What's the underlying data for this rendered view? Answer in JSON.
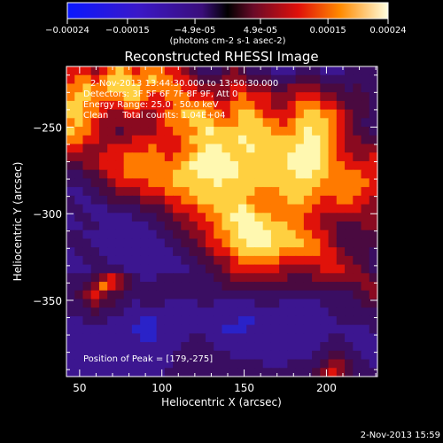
{
  "chart_data": {
    "type": "heatmap",
    "title": "Reconstructed RHESSI Image",
    "xlabel": "Heliocentric X (arcsec)",
    "ylabel": "Heliocentric Y (arcsec)",
    "xlim": [
      42,
      231
    ],
    "ylim": [
      -394,
      -215
    ],
    "x_ticks": [
      50,
      100,
      150,
      200
    ],
    "y_ticks": [
      -250,
      -300,
      -350
    ],
    "colorbar": {
      "ticks": [
        "-0.00024",
        "-0.00015",
        "-4.9e-05",
        "4.9e-05",
        "0.00015",
        "0.00024"
      ],
      "unit_label": "(photons cm-2 s-1 asec-2)",
      "range": [
        -0.00024,
        0.00024
      ]
    },
    "annotations": {
      "time_range": "2-Nov-2013 13:44:30.000 to 13:50:30.000",
      "detectors": "Detectors: 3F 5F 6F 7F 8F 9F, Att 0",
      "energy": "Energy Range: 25.0 - 50.0 keV",
      "clean": "Clean     Total counts: 1.04E+04",
      "peak": "Position of Peak = [179,-275]"
    },
    "timestamp": "2-Nov-2013 15:59",
    "grid": [
      [
        6,
        6,
        6,
        5,
        6,
        7,
        8,
        7,
        6,
        7,
        7,
        7,
        6,
        6,
        5,
        4,
        3,
        3,
        3,
        4,
        5,
        4,
        3,
        3,
        3,
        2,
        2,
        2,
        3,
        3,
        3,
        2,
        2,
        2,
        3,
        3,
        3,
        3
      ],
      [
        6,
        7,
        7,
        6,
        7,
        8,
        8,
        8,
        7,
        7,
        8,
        7,
        7,
        6,
        6,
        5,
        4,
        4,
        4,
        5,
        5,
        5,
        4,
        4,
        4,
        3,
        3,
        3,
        4,
        4,
        4,
        3,
        3,
        3,
        3,
        3,
        3,
        3
      ],
      [
        7,
        7,
        8,
        7,
        7,
        8,
        8,
        8,
        8,
        7,
        7,
        7,
        7,
        7,
        6,
        6,
        5,
        5,
        5,
        5,
        6,
        6,
        5,
        5,
        5,
        4,
        4,
        5,
        5,
        5,
        5,
        4,
        4,
        4,
        3,
        4,
        3,
        3
      ],
      [
        7,
        8,
        8,
        7,
        7,
        7,
        7,
        8,
        8,
        7,
        6,
        6,
        7,
        7,
        7,
        6,
        6,
        6,
        5,
        5,
        6,
        7,
        6,
        6,
        6,
        5,
        5,
        5,
        6,
        6,
        6,
        5,
        5,
        4,
        4,
        4,
        4,
        3
      ],
      [
        8,
        8,
        7,
        7,
        6,
        6,
        6,
        7,
        7,
        6,
        6,
        6,
        6,
        7,
        7,
        7,
        7,
        7,
        6,
        6,
        7,
        7,
        7,
        6,
        6,
        5,
        5,
        6,
        7,
        7,
        7,
        6,
        6,
        5,
        4,
        4,
        4,
        3
      ],
      [
        8,
        8,
        7,
        7,
        6,
        5,
        5,
        6,
        6,
        5,
        5,
        6,
        7,
        7,
        8,
        8,
        8,
        7,
        7,
        6,
        7,
        8,
        8,
        7,
        6,
        6,
        6,
        6,
        7,
        8,
        8,
        7,
        7,
        6,
        5,
        4,
        4,
        3
      ],
      [
        7,
        8,
        7,
        6,
        5,
        5,
        5,
        5,
        5,
        5,
        5,
        6,
        7,
        7,
        7,
        8,
        8,
        8,
        7,
        7,
        7,
        8,
        8,
        8,
        7,
        7,
        6,
        7,
        8,
        8,
        8,
        8,
        7,
        6,
        5,
        4,
        3,
        3
      ],
      [
        8,
        7,
        7,
        6,
        5,
        5,
        4,
        5,
        5,
        5,
        5,
        6,
        6,
        7,
        7,
        7,
        8,
        9,
        8,
        8,
        8,
        8,
        8,
        8,
        8,
        7,
        7,
        7,
        8,
        9,
        8,
        8,
        7,
        6,
        5,
        4,
        4,
        3
      ],
      [
        7,
        7,
        6,
        6,
        5,
        5,
        5,
        5,
        6,
        6,
        6,
        6,
        6,
        6,
        7,
        8,
        8,
        8,
        8,
        8,
        8,
        9,
        8,
        8,
        8,
        8,
        8,
        8,
        8,
        9,
        9,
        8,
        7,
        6,
        5,
        5,
        4,
        4
      ],
      [
        6,
        6,
        5,
        5,
        5,
        6,
        6,
        6,
        6,
        6,
        7,
        6,
        6,
        6,
        7,
        7,
        8,
        9,
        9,
        8,
        8,
        8,
        9,
        8,
        8,
        8,
        8,
        8,
        9,
        9,
        9,
        8,
        7,
        6,
        5,
        5,
        5,
        5
      ],
      [
        5,
        5,
        5,
        5,
        6,
        6,
        6,
        7,
        7,
        7,
        7,
        7,
        6,
        7,
        7,
        8,
        9,
        9,
        9,
        9,
        8,
        8,
        8,
        8,
        8,
        8,
        8,
        9,
        9,
        9,
        9,
        8,
        7,
        6,
        6,
        5,
        5,
        6
      ],
      [
        4,
        4,
        5,
        5,
        6,
        6,
        6,
        7,
        7,
        7,
        7,
        7,
        7,
        7,
        8,
        9,
        9,
        9,
        9,
        9,
        9,
        8,
        8,
        8,
        8,
        8,
        8,
        9,
        9,
        9,
        9,
        8,
        7,
        7,
        6,
        6,
        6,
        6
      ],
      [
        3,
        3,
        4,
        4,
        5,
        6,
        6,
        7,
        7,
        7,
        7,
        7,
        7,
        8,
        8,
        8,
        9,
        9,
        9,
        9,
        9,
        8,
        8,
        8,
        8,
        8,
        8,
        8,
        9,
        9,
        8,
        8,
        7,
        7,
        7,
        7,
        6,
        6
      ],
      [
        3,
        3,
        3,
        4,
        4,
        5,
        6,
        6,
        6,
        6,
        7,
        7,
        7,
        8,
        8,
        8,
        8,
        8,
        9,
        8,
        8,
        8,
        8,
        8,
        8,
        8,
        8,
        8,
        8,
        8,
        8,
        7,
        7,
        7,
        7,
        7,
        7,
        6
      ],
      [
        2,
        2,
        3,
        3,
        4,
        4,
        5,
        5,
        5,
        6,
        6,
        6,
        7,
        7,
        7,
        8,
        8,
        8,
        8,
        8,
        8,
        8,
        8,
        7,
        7,
        7,
        8,
        8,
        8,
        8,
        7,
        7,
        7,
        7,
        7,
        7,
        6,
        6
      ],
      [
        3,
        2,
        2,
        3,
        3,
        4,
        4,
        4,
        4,
        5,
        5,
        5,
        6,
        6,
        7,
        7,
        8,
        8,
        8,
        8,
        8,
        8,
        7,
        7,
        7,
        7,
        7,
        8,
        8,
        7,
        7,
        6,
        6,
        7,
        7,
        6,
        6,
        5
      ],
      [
        3,
        3,
        2,
        2,
        2,
        3,
        3,
        3,
        3,
        4,
        4,
        4,
        5,
        6,
        6,
        6,
        7,
        7,
        8,
        8,
        8,
        9,
        8,
        7,
        7,
        7,
        7,
        7,
        7,
        7,
        6,
        6,
        6,
        6,
        6,
        6,
        5,
        5
      ],
      [
        2,
        3,
        3,
        2,
        2,
        2,
        2,
        2,
        3,
        3,
        3,
        4,
        4,
        5,
        5,
        6,
        6,
        7,
        7,
        8,
        9,
        9,
        9,
        8,
        8,
        7,
        7,
        7,
        7,
        6,
        6,
        5,
        5,
        5,
        5,
        5,
        5,
        5
      ],
      [
        2,
        2,
        3,
        3,
        2,
        2,
        2,
        2,
        2,
        2,
        3,
        3,
        4,
        4,
        5,
        5,
        6,
        6,
        7,
        8,
        8,
        9,
        9,
        9,
        8,
        8,
        8,
        7,
        7,
        6,
        6,
        5,
        5,
        4,
        4,
        4,
        5,
        5
      ],
      [
        3,
        3,
        2,
        2,
        2,
        2,
        2,
        2,
        2,
        2,
        2,
        3,
        3,
        4,
        4,
        5,
        5,
        6,
        7,
        7,
        8,
        9,
        9,
        9,
        9,
        8,
        8,
        8,
        7,
        7,
        6,
        6,
        5,
        4,
        4,
        4,
        4,
        4
      ],
      [
        3,
        3,
        3,
        2,
        2,
        2,
        2,
        2,
        2,
        2,
        2,
        2,
        3,
        3,
        4,
        4,
        5,
        6,
        6,
        7,
        8,
        8,
        9,
        9,
        9,
        8,
        8,
        8,
        8,
        7,
        7,
        6,
        5,
        4,
        4,
        4,
        4,
        4
      ],
      [
        2,
        3,
        3,
        3,
        2,
        2,
        2,
        2,
        2,
        2,
        2,
        2,
        2,
        3,
        3,
        4,
        4,
        5,
        6,
        6,
        7,
        8,
        8,
        8,
        8,
        8,
        7,
        7,
        7,
        7,
        7,
        6,
        6,
        5,
        4,
        4,
        4,
        3
      ],
      [
        2,
        2,
        3,
        3,
        3,
        2,
        2,
        2,
        2,
        2,
        2,
        2,
        2,
        2,
        3,
        3,
        4,
        4,
        5,
        5,
        6,
        7,
        7,
        7,
        7,
        7,
        6,
        6,
        6,
        6,
        6,
        6,
        6,
        5,
        5,
        4,
        4,
        3
      ],
      [
        2,
        2,
        2,
        3,
        3,
        3,
        3,
        2,
        2,
        2,
        2,
        2,
        2,
        2,
        2,
        3,
        3,
        4,
        4,
        5,
        6,
        6,
        6,
        6,
        6,
        6,
        5,
        5,
        5,
        5,
        5,
        6,
        6,
        6,
        5,
        5,
        4,
        3
      ],
      [
        3,
        3,
        3,
        4,
        5,
        6,
        5,
        4,
        3,
        2,
        2,
        3,
        3,
        3,
        3,
        3,
        3,
        3,
        4,
        4,
        5,
        5,
        5,
        5,
        5,
        5,
        5,
        4,
        4,
        4,
        5,
        5,
        5,
        5,
        5,
        5,
        5,
        4
      ],
      [
        3,
        3,
        4,
        5,
        7,
        6,
        5,
        4,
        3,
        3,
        3,
        3,
        3,
        3,
        3,
        3,
        3,
        3,
        3,
        4,
        4,
        4,
        4,
        4,
        4,
        4,
        4,
        4,
        4,
        4,
        4,
        4,
        4,
        4,
        4,
        4,
        5,
        5
      ],
      [
        3,
        4,
        5,
        6,
        5,
        4,
        4,
        3,
        3,
        3,
        3,
        3,
        3,
        3,
        3,
        3,
        3,
        3,
        3,
        3,
        3,
        3,
        3,
        3,
        3,
        3,
        3,
        3,
        3,
        3,
        3,
        3,
        3,
        3,
        3,
        4,
        4,
        5
      ],
      [
        3,
        3,
        4,
        5,
        4,
        4,
        3,
        3,
        2,
        3,
        3,
        3,
        2,
        2,
        2,
        2,
        3,
        3,
        2,
        2,
        2,
        2,
        2,
        3,
        3,
        3,
        2,
        2,
        2,
        2,
        2,
        3,
        3,
        3,
        3,
        3,
        4,
        4
      ],
      [
        3,
        3,
        3,
        4,
        3,
        3,
        3,
        2,
        2,
        2,
        2,
        2,
        2,
        2,
        2,
        2,
        2,
        2,
        2,
        2,
        2,
        2,
        2,
        2,
        2,
        2,
        2,
        2,
        2,
        2,
        2,
        2,
        3,
        3,
        3,
        3,
        3,
        3
      ],
      [
        2,
        2,
        3,
        3,
        3,
        2,
        2,
        2,
        2,
        1,
        1,
        2,
        2,
        2,
        2,
        2,
        2,
        2,
        2,
        2,
        2,
        1,
        1,
        2,
        2,
        2,
        2,
        2,
        2,
        2,
        2,
        2,
        2,
        3,
        3,
        3,
        3,
        3
      ],
      [
        2,
        2,
        2,
        2,
        2,
        2,
        2,
        2,
        1,
        1,
        1,
        2,
        2,
        2,
        2,
        2,
        2,
        2,
        2,
        1,
        1,
        1,
        2,
        2,
        2,
        2,
        2,
        2,
        2,
        2,
        2,
        2,
        2,
        2,
        2,
        2,
        2,
        3
      ],
      [
        2,
        2,
        2,
        2,
        2,
        2,
        2,
        2,
        2,
        1,
        1,
        2,
        2,
        2,
        2,
        3,
        3,
        2,
        2,
        2,
        2,
        2,
        2,
        2,
        2,
        2,
        2,
        2,
        2,
        2,
        2,
        2,
        3,
        3,
        2,
        2,
        2,
        2
      ],
      [
        2,
        2,
        2,
        2,
        2,
        2,
        2,
        2,
        2,
        2,
        2,
        2,
        2,
        2,
        3,
        3,
        3,
        3,
        2,
        2,
        2,
        2,
        2,
        2,
        2,
        2,
        2,
        2,
        2,
        2,
        2,
        3,
        3,
        3,
        3,
        2,
        2,
        2
      ],
      [
        2,
        2,
        2,
        2,
        2,
        2,
        2,
        2,
        2,
        2,
        2,
        2,
        2,
        3,
        3,
        3,
        3,
        3,
        3,
        3,
        2,
        2,
        2,
        2,
        2,
        2,
        2,
        2,
        2,
        2,
        3,
        3,
        4,
        4,
        3,
        3,
        2,
        2
      ],
      [
        2,
        2,
        2,
        2,
        2,
        2,
        2,
        2,
        2,
        2,
        2,
        2,
        2,
        3,
        3,
        3,
        3,
        3,
        3,
        3,
        3,
        3,
        3,
        3,
        2,
        2,
        2,
        3,
        3,
        3,
        3,
        4,
        5,
        5,
        4,
        3,
        3,
        2
      ],
      [
        2,
        2,
        2,
        2,
        2,
        2,
        2,
        2,
        2,
        2,
        2,
        2,
        3,
        3,
        3,
        3,
        3,
        3,
        3,
        3,
        3,
        3,
        3,
        3,
        3,
        3,
        3,
        3,
        3,
        3,
        4,
        5,
        6,
        5,
        4,
        3,
        3,
        3
      ]
    ]
  }
}
